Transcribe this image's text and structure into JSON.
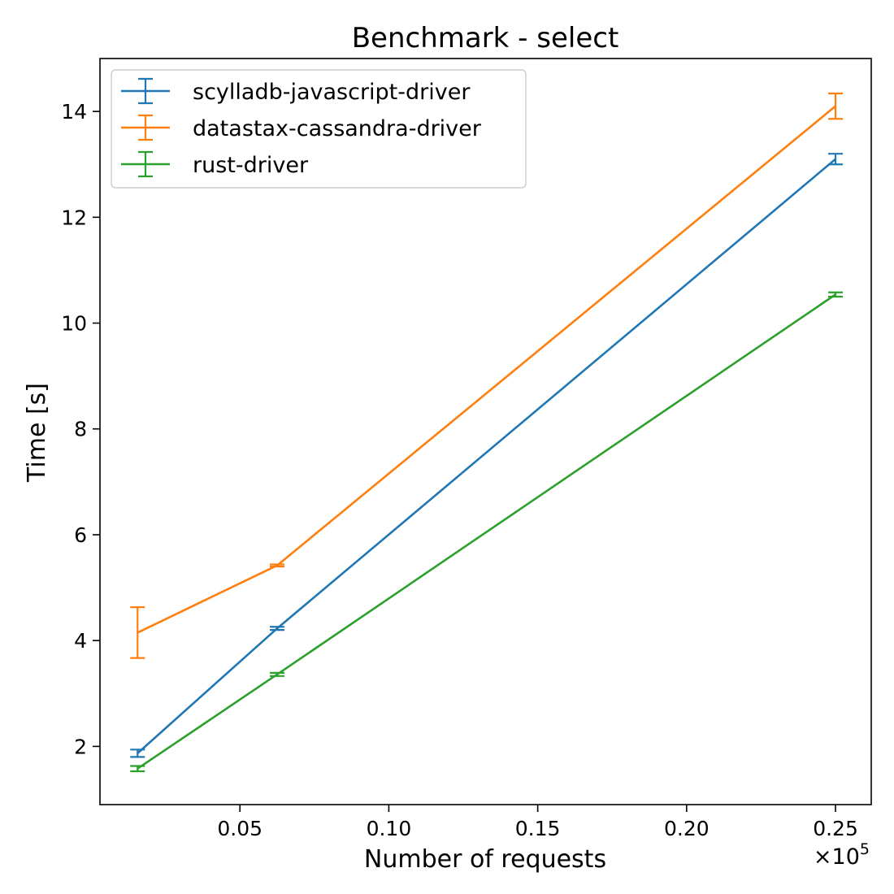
{
  "chart_data": {
    "type": "line",
    "title": "Benchmark - select",
    "xlabel": "Number of requests",
    "ylabel": "Time [s]",
    "x_offset_text": "×10",
    "x_offset_exponent": "5",
    "xlim": [
      0.003,
      0.262
    ],
    "ylim": [
      0.9,
      15.0
    ],
    "x_ticks": [
      0.05,
      0.1,
      0.15,
      0.2,
      0.25
    ],
    "x_tick_labels": [
      "0.05",
      "0.10",
      "0.15",
      "0.20",
      "0.25"
    ],
    "y_ticks": [
      2,
      4,
      6,
      8,
      10,
      12,
      14
    ],
    "y_tick_labels": [
      "2",
      "4",
      "6",
      "8",
      "10",
      "12",
      "14"
    ],
    "grid": false,
    "legend_position": "top-left",
    "series": [
      {
        "name": "scylladb-javascript-driver",
        "color": "#1f77b4",
        "points": [
          {
            "x": 0.015625,
            "y": 1.87,
            "err": 0.07
          },
          {
            "x": 0.0625,
            "y": 4.23,
            "err": 0.03
          },
          {
            "x": 0.25,
            "y": 13.1,
            "err": 0.1
          }
        ]
      },
      {
        "name": "datastax-cassandra-driver",
        "color": "#ff7f0e",
        "points": [
          {
            "x": 0.015625,
            "y": 4.15,
            "err": 0.48
          },
          {
            "x": 0.0625,
            "y": 5.42,
            "err": 0.02
          },
          {
            "x": 0.25,
            "y": 14.1,
            "err": 0.24
          }
        ]
      },
      {
        "name": "rust-driver",
        "color": "#2ca02c",
        "points": [
          {
            "x": 0.015625,
            "y": 1.58,
            "err": 0.05
          },
          {
            "x": 0.0625,
            "y": 3.36,
            "err": 0.03
          },
          {
            "x": 0.25,
            "y": 10.54,
            "err": 0.04
          }
        ]
      }
    ]
  }
}
